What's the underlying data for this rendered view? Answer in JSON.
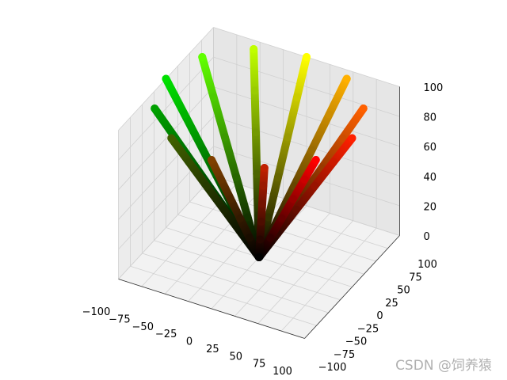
{
  "chart_data": {
    "type": "scatter3d",
    "xlim": [
      -100,
      100
    ],
    "ylim": [
      -100,
      100
    ],
    "zlim": [
      0,
      100
    ],
    "xticks": [
      {
        "value": -100,
        "label": "−100"
      },
      {
        "value": -75,
        "label": "−75"
      },
      {
        "value": -50,
        "label": "−50"
      },
      {
        "value": -25,
        "label": "−25"
      },
      0,
      25,
      50,
      75,
      100
    ],
    "yticks": [
      {
        "value": -100,
        "label": "−100"
      },
      {
        "value": -75,
        "label": "−75"
      },
      {
        "value": -50,
        "label": "−50"
      },
      {
        "value": -25,
        "label": "−25"
      },
      0,
      25,
      50,
      75,
      100
    ],
    "zticks": [
      0,
      20,
      40,
      60,
      80,
      100
    ],
    "grid": true,
    "series": [
      {
        "color": "#ff2000",
        "x": [
          0,
          20,
          40,
          60,
          80,
          100
        ],
        "y": [
          0,
          0,
          0,
          0,
          0,
          0
        ],
        "z": [
          0,
          20,
          40,
          60,
          80,
          100
        ]
      },
      {
        "color": "#ff6000",
        "x": [
          0,
          17.3,
          34.6,
          52,
          69.3,
          86.6
        ],
        "y": [
          0,
          10,
          20,
          30,
          40,
          50
        ],
        "z": [
          0,
          20,
          40,
          60,
          80,
          100
        ]
      },
      {
        "color": "#ffb000",
        "x": [
          0,
          10,
          20,
          30,
          40,
          50
        ],
        "y": [
          0,
          17.3,
          34.6,
          52,
          69.3,
          86.6
        ],
        "z": [
          0,
          20,
          40,
          60,
          80,
          100
        ]
      },
      {
        "color": "#ffff00",
        "x": [
          0,
          0,
          0,
          0,
          0,
          0
        ],
        "y": [
          0,
          20,
          40,
          60,
          80,
          100
        ],
        "z": [
          0,
          20,
          40,
          60,
          80,
          100
        ]
      },
      {
        "color": "#c0ff00",
        "x": [
          0,
          -10,
          -20,
          -30,
          -40,
          -50
        ],
        "y": [
          0,
          17.3,
          34.6,
          52,
          69.3,
          86.6
        ],
        "z": [
          0,
          20,
          40,
          60,
          80,
          100
        ]
      },
      {
        "color": "#60ff00",
        "x": [
          0,
          -17.3,
          -34.6,
          -52,
          -69.3,
          -86.6
        ],
        "y": [
          0,
          10,
          20,
          30,
          40,
          50
        ],
        "z": [
          0,
          20,
          40,
          60,
          80,
          100
        ]
      },
      {
        "color": "#00e000",
        "x": [
          0,
          -20,
          -40,
          -60,
          -80,
          -100
        ],
        "y": [
          0,
          0,
          0,
          0,
          0,
          0
        ],
        "z": [
          0,
          20,
          40,
          60,
          80,
          100
        ]
      },
      {
        "color": "#00a000",
        "x": [
          0,
          -17.3,
          -34.6,
          -52,
          -69.3,
          -86.6
        ],
        "y": [
          0,
          -10,
          -20,
          -30,
          -40,
          -50
        ],
        "z": [
          0,
          20,
          40,
          60,
          80,
          100
        ]
      },
      {
        "color": "#406000",
        "x": [
          0,
          -10,
          -20,
          -30,
          -40,
          -50
        ],
        "y": [
          0,
          -17.3,
          -34.6,
          -52,
          -69.3,
          -86.6
        ],
        "z": [
          0,
          20,
          40,
          60,
          80,
          100
        ]
      },
      {
        "color": "#804000",
        "x": [
          0,
          0,
          0,
          0,
          0,
          0
        ],
        "y": [
          0,
          -20,
          -40,
          -60,
          -80,
          -100
        ],
        "z": [
          0,
          20,
          40,
          60,
          80,
          100
        ]
      },
      {
        "color": "#c02000",
        "x": [
          0,
          10,
          20,
          30,
          40,
          50
        ],
        "y": [
          0,
          -17.3,
          -34.6,
          -52,
          -69.3,
          -86.6
        ],
        "z": [
          0,
          20,
          40,
          60,
          80,
          100
        ]
      },
      {
        "color": "#ff0000",
        "x": [
          0,
          17.3,
          34.6,
          52,
          69.3,
          86.6
        ],
        "y": [
          0,
          -10,
          -20,
          -30,
          -40,
          -50
        ],
        "z": [
          0,
          20,
          40,
          60,
          80,
          100
        ]
      }
    ],
    "watermark": "CSDN @饲养猿"
  }
}
